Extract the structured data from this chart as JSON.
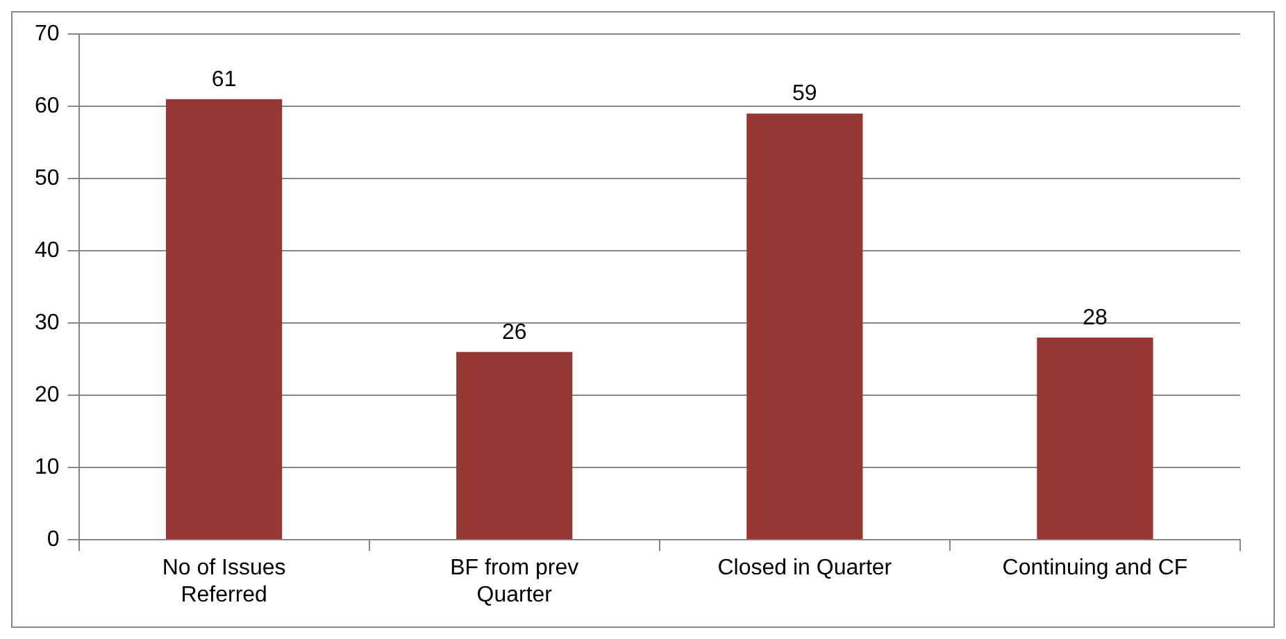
{
  "chart_data": {
    "type": "bar",
    "categories": [
      "No of Issues Referred",
      "BF from prev Quarter",
      "Closed in Quarter",
      "Continuing and CF"
    ],
    "values": [
      61,
      26,
      59,
      28
    ],
    "color": "#953735",
    "ylim": [
      0,
      70
    ],
    "yticks": [
      0,
      10,
      20,
      30,
      40,
      50,
      60,
      70
    ],
    "grid": "y",
    "data_labels": true
  }
}
